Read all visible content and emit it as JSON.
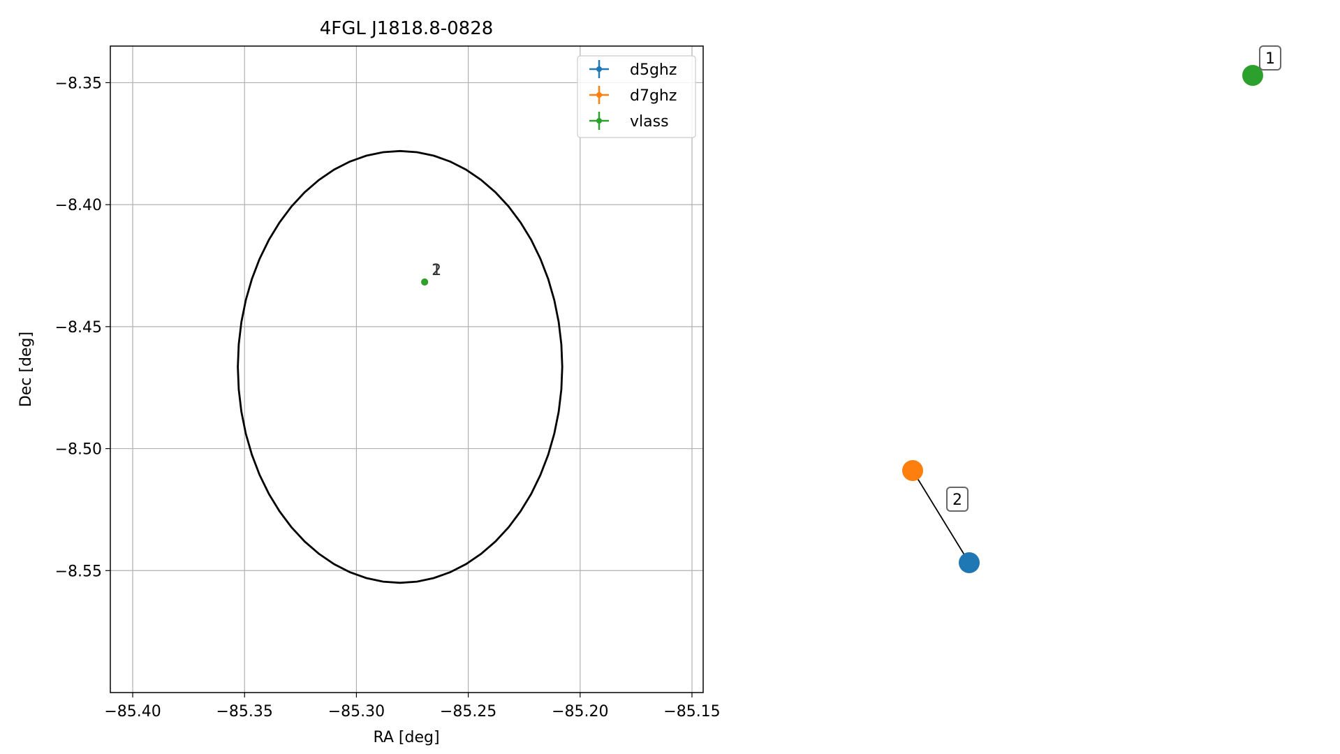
{
  "chart_data": {
    "type": "scatter",
    "title": "4FGL J1818.8-0828",
    "xlabel": "RA [deg]",
    "ylabel": "Dec [deg]",
    "xlim": [
      -85.41,
      -85.145
    ],
    "ylim": [
      -8.6,
      -8.335
    ],
    "xticks": [
      -85.4,
      -85.35,
      -85.3,
      -85.25,
      -85.2,
      -85.15
    ],
    "xtick_labels": [
      "−85.40",
      "−85.35",
      "−85.30",
      "−85.25",
      "−85.20",
      "−85.15"
    ],
    "yticks": [
      -8.35,
      -8.4,
      -8.45,
      -8.5,
      -8.55
    ],
    "ytick_labels": [
      "−8.35",
      "−8.40",
      "−8.45",
      "−8.50",
      "−8.55"
    ],
    "grid": true,
    "legend_position": "top-right",
    "ellipse": {
      "center_ra": -85.2805,
      "center_dec": -8.4665,
      "semi_axis_ra": 0.0725,
      "semi_axis_dec": 0.0885,
      "color": "#000000"
    },
    "series": [
      {
        "name": "d5ghz",
        "color": "#1f77b4",
        "points": [
          {
            "ra": -85.2695,
            "dec": -8.4317,
            "label": "1"
          }
        ]
      },
      {
        "name": "d7ghz",
        "color": "#ff7f0e",
        "points": [
          {
            "ra": -85.2695,
            "dec": -8.4317,
            "label": "2"
          }
        ]
      },
      {
        "name": "vlass",
        "color": "#2ca02c",
        "points": [
          {
            "ra": -85.2695,
            "dec": -8.4317,
            "label": ""
          }
        ]
      }
    ],
    "inset": {
      "markers": [
        {
          "series": "vlass",
          "color": "#2ca02c"
        },
        {
          "series": "d7ghz",
          "color": "#ff7f0e"
        },
        {
          "series": "d5ghz",
          "color": "#1f77b4"
        }
      ],
      "badges": [
        "1",
        "2"
      ]
    }
  }
}
